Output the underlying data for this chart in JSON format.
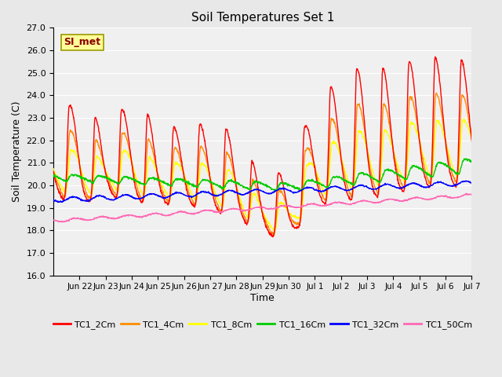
{
  "title": "Soil Temperatures Set 1",
  "xlabel": "Time",
  "ylabel": "Soil Temperature (C)",
  "ylim": [
    16.0,
    27.0
  ],
  "yticks": [
    16.0,
    17.0,
    18.0,
    19.0,
    20.0,
    21.0,
    22.0,
    23.0,
    24.0,
    25.0,
    26.0,
    27.0
  ],
  "annotation_text": "SI_met",
  "annotation_color": "#8B0000",
  "annotation_bg": "#FFFF99",
  "annotation_border": "#999900",
  "bg_color": "#E8E8E8",
  "plot_bg": "#F0F0F0",
  "series_colors": {
    "TC1_2Cm": "#FF0000",
    "TC1_4Cm": "#FF8C00",
    "TC1_8Cm": "#FFFF00",
    "TC1_16Cm": "#00CC00",
    "TC1_32Cm": "#0000FF",
    "TC1_50Cm": "#FF69B4"
  },
  "linewidth": 1.0,
  "n_points": 1440,
  "xtick_positions": [
    0,
    1,
    2,
    3,
    4,
    5,
    6,
    7,
    8,
    9,
    10,
    11,
    12,
    13,
    14,
    15
  ],
  "xtick_labels": [
    "Jun 22",
    "Jun 23",
    "Jun 24",
    "Jun 25",
    "Jun 26",
    "Jun 27",
    "Jun 28",
    "Jun 29",
    "Jun 30",
    "Jul 1",
    "Jul 2",
    "Jul 3",
    "Jul 4",
    "Jul 5",
    "Jul 6",
    "Jul 7"
  ],
  "xlim": [
    -1,
    15
  ]
}
